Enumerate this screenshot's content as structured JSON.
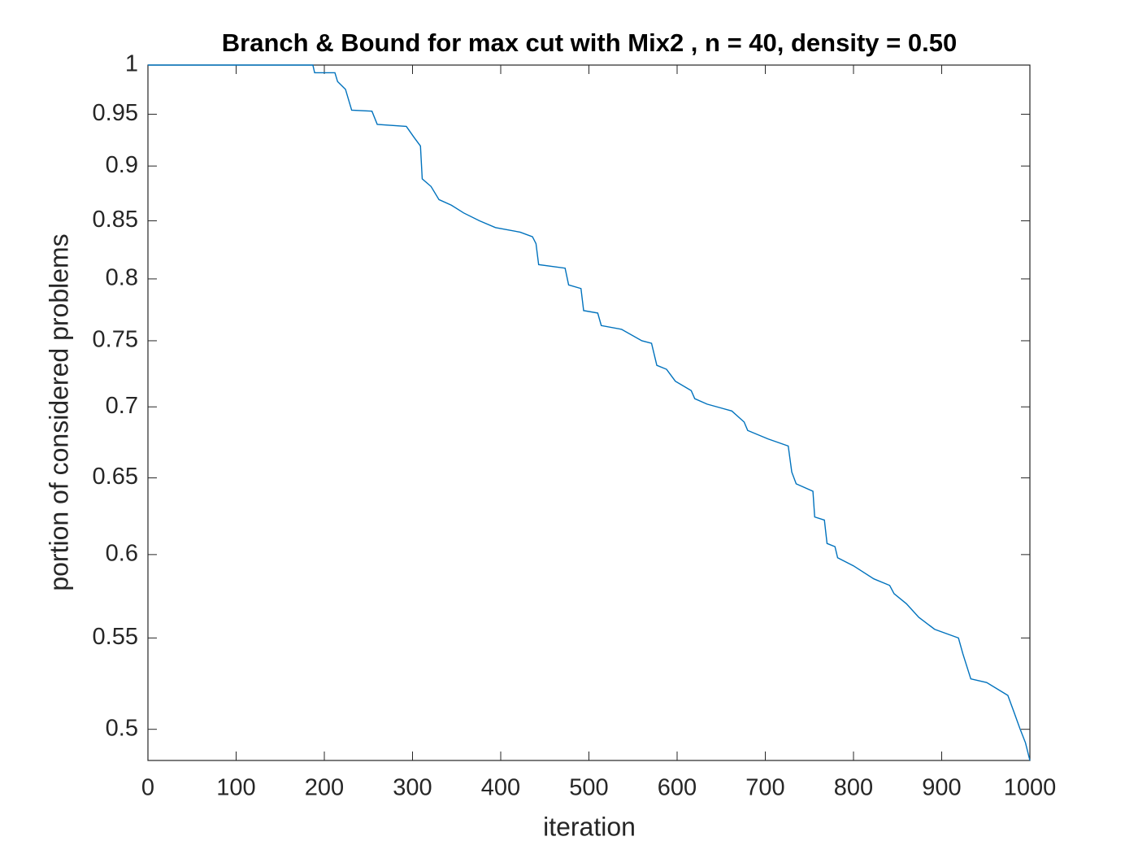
{
  "chart_data": {
    "type": "line",
    "title": "Branch & Bound for max cut with Mix2 , n = 40, density = 0.50",
    "x_label": "iteration",
    "y_label": "portion of considered problems",
    "y_scale": "log",
    "xlim": [
      0,
      1000
    ],
    "xticks": [
      0,
      100,
      200,
      300,
      400,
      500,
      600,
      700,
      800,
      900,
      1000
    ],
    "ylim": [
      0.484,
      1
    ],
    "yticks": [
      0.5,
      0.55,
      0.6,
      0.65,
      0.7,
      0.75,
      0.8,
      0.85,
      0.9,
      0.95,
      1
    ],
    "series": [
      {
        "color": "#0072bd",
        "x": [
          0,
          187,
          189,
          212,
          215,
          224,
          231,
          254,
          260,
          293,
          302,
          309,
          311,
          321,
          330,
          344,
          358,
          376,
          394,
          422,
          436,
          440,
          443,
          473,
          477,
          491,
          494,
          510,
          514,
          537,
          560,
          571,
          577,
          588,
          598,
          616,
          620,
          634,
          662,
          676,
          680,
          703,
          726,
          730,
          735,
          754,
          756,
          767,
          770,
          779,
          782,
          800,
          823,
          841,
          846,
          860,
          874,
          892,
          919,
          924,
          933,
          951,
          975,
          982,
          989,
          995,
          1000
        ],
        "values": [
          1,
          1,
          0.992,
          0.992,
          0.983,
          0.975,
          0.954,
          0.953,
          0.94,
          0.938,
          0.927,
          0.919,
          0.888,
          0.881,
          0.869,
          0.864,
          0.857,
          0.85,
          0.844,
          0.84,
          0.836,
          0.83,
          0.812,
          0.809,
          0.795,
          0.792,
          0.774,
          0.772,
          0.762,
          0.759,
          0.75,
          0.748,
          0.731,
          0.728,
          0.719,
          0.712,
          0.706,
          0.702,
          0.697,
          0.689,
          0.683,
          0.677,
          0.672,
          0.654,
          0.646,
          0.641,
          0.624,
          0.622,
          0.607,
          0.605,
          0.598,
          0.593,
          0.585,
          0.581,
          0.576,
          0.57,
          0.562,
          0.555,
          0.55,
          0.541,
          0.527,
          0.525,
          0.518,
          0.509,
          0.5,
          0.493,
          0.484
        ]
      }
    ]
  }
}
